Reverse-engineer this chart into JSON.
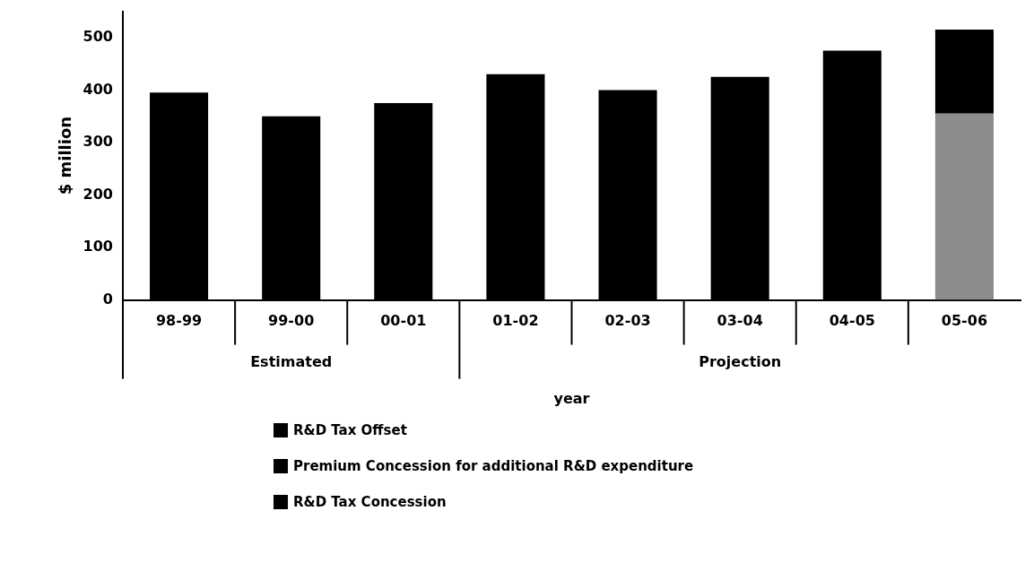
{
  "chart_data": {
    "type": "bar",
    "stacked": true,
    "xlabel": "year",
    "ylabel": "$ million",
    "categories": [
      "98-99",
      "99-00",
      "00-01",
      "01-02",
      "02-03",
      "03-04",
      "04-05",
      "05-06"
    ],
    "series": [
      {
        "name": "R&D Tax Concession",
        "color": "#000000",
        "colors": [
          "#000000",
          "#000000",
          "#000000",
          "#000000",
          "#000000",
          "#000000",
          "#000000",
          "#8c8c8c"
        ],
        "values": [
          395,
          350,
          375,
          430,
          400,
          425,
          475,
          355
        ]
      },
      {
        "name": "Premium Concession for additional R&D expenditure",
        "color": "#000000",
        "values": [
          null,
          null,
          null,
          null,
          null,
          null,
          null,
          null
        ]
      },
      {
        "name": "R&D Tax Offset",
        "color": "#000000",
        "values": [
          null,
          null,
          null,
          null,
          null,
          null,
          null,
          160
        ]
      }
    ],
    "ylim": [
      0,
      550
    ],
    "yticks": [
      0,
      100,
      200,
      300,
      400,
      500
    ],
    "grid": false,
    "legend": "bottom",
    "annotations": [
      "Estimated",
      "Projection"
    ]
  }
}
